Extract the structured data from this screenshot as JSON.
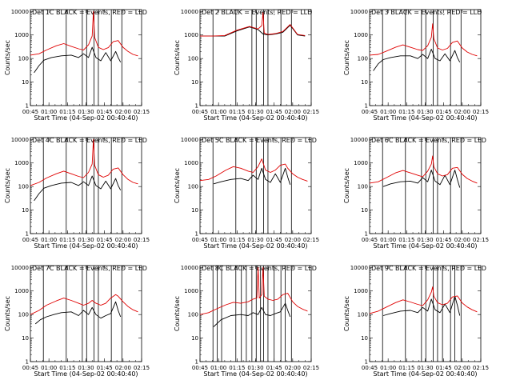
{
  "colors": {
    "events": "#000000",
    "lld": "#e00000",
    "background": "#ffffff",
    "axes": "#000000"
  },
  "axes_common": {
    "xlabel": "Start Time (04-Sep-02 00:40:40)",
    "ylabel": "Counts/sec",
    "xticks": [
      "00:45",
      "01:00",
      "01:15",
      "01:30",
      "01:45",
      "02:00",
      "02:15"
    ],
    "yticks": [
      "1",
      "10",
      "100",
      "1000",
      "10000"
    ],
    "xlim_minutes": [
      45,
      135
    ],
    "ylim": [
      1,
      12000
    ],
    "yscale": "log"
  },
  "chart_data": [
    {
      "type": "line",
      "title": "Det 1C BLACK = Events, RED = LLD",
      "x_unit": "minutes after 00:00",
      "x_range": [
        45,
        135
      ],
      "attenuator_lines_x": [
        55.5,
        74,
        87,
        90.5,
        96.5,
        100,
        110.5,
        119
      ],
      "series": [
        {
          "key": "events",
          "x": [
            48,
            52,
            56,
            62,
            70,
            78,
            84,
            88,
            92,
            95,
            98,
            102,
            106,
            110,
            114,
            116,
            118
          ],
          "y": [
            25,
            50,
            85,
            110,
            130,
            140,
            110,
            160,
            110,
            300,
            110,
            80,
            180,
            80,
            200,
            110,
            70
          ]
        },
        {
          "key": "lld",
          "x": [
            45,
            52,
            58,
            66,
            72,
            78,
            84,
            88,
            92,
            95,
            96,
            97,
            100,
            104,
            108,
            112,
            116,
            120,
            124,
            128,
            132
          ],
          "y": [
            140,
            160,
            230,
            350,
            430,
            330,
            260,
            230,
            380,
            900,
            10000,
            800,
            300,
            240,
            290,
            520,
            580,
            300,
            200,
            150,
            130
          ]
        }
      ]
    },
    {
      "type": "line",
      "title": "Det 2 BLACK = Events, RED = LLD",
      "x_unit": "minutes after 00:00",
      "x_range": [
        45,
        135
      ],
      "attenuator_lines_x": [
        55.5,
        74,
        87,
        90.5,
        96.5,
        100,
        110.5,
        119
      ],
      "series": [
        {
          "key": "events",
          "x": [
            45,
            55,
            65,
            75,
            85,
            92,
            96,
            100,
            106,
            112,
            118,
            124,
            130
          ],
          "y": [
            900,
            900,
            900,
            1500,
            2200,
            1700,
            1100,
            1000,
            1100,
            1300,
            2600,
            1000,
            900
          ]
        },
        {
          "key": "lld",
          "x": [
            45,
            55,
            65,
            75,
            85,
            92,
            95,
            96,
            97,
            100,
            106,
            112,
            118,
            124,
            130
          ],
          "y": [
            900,
            900,
            950,
            1600,
            2300,
            1800,
            2500,
            9000,
            1200,
            1050,
            1150,
            1400,
            2800,
            1050,
            950
          ]
        }
      ]
    },
    {
      "type": "line",
      "title": "Det 3 BLACK = Events, RED = LLD",
      "x_unit": "minutes after 00:00",
      "x_range": [
        45,
        135
      ],
      "attenuator_lines_x": [
        55.5,
        74,
        87,
        90.5,
        96.5,
        100,
        110.5,
        119
      ],
      "series": [
        {
          "key": "events",
          "x": [
            48,
            52,
            56,
            62,
            70,
            78,
            84,
            88,
            92,
            95,
            98,
            102,
            106,
            110,
            114,
            116,
            118
          ],
          "y": [
            30,
            60,
            90,
            110,
            130,
            130,
            100,
            150,
            100,
            250,
            100,
            80,
            160,
            80,
            220,
            110,
            70
          ]
        },
        {
          "key": "lld",
          "x": [
            45,
            52,
            58,
            66,
            72,
            78,
            84,
            88,
            92,
            95,
            96,
            97,
            100,
            104,
            108,
            112,
            116,
            120,
            124,
            128,
            132
          ],
          "y": [
            140,
            150,
            200,
            300,
            380,
            300,
            240,
            220,
            350,
            800,
            3000,
            700,
            280,
            230,
            270,
            480,
            560,
            280,
            190,
            150,
            130
          ]
        }
      ]
    },
    {
      "type": "line",
      "title": "Det 4C BLACK = Events, RED = LLD",
      "x_unit": "minutes after 00:00",
      "x_range": [
        45,
        135
      ],
      "attenuator_lines_x": [
        55.5,
        74,
        87,
        90.5,
        96.5,
        100,
        110.5,
        119
      ],
      "series": [
        {
          "key": "events",
          "x": [
            48,
            52,
            56,
            62,
            70,
            78,
            84,
            88,
            92,
            95,
            98,
            102,
            106,
            110,
            114,
            116,
            118
          ],
          "y": [
            25,
            50,
            85,
            110,
            140,
            150,
            110,
            160,
            110,
            280,
            110,
            80,
            170,
            80,
            220,
            110,
            70
          ]
        },
        {
          "key": "lld",
          "x": [
            45,
            52,
            58,
            66,
            72,
            78,
            84,
            88,
            92,
            95,
            96,
            97,
            100,
            104,
            108,
            112,
            116,
            120,
            124,
            128,
            132
          ],
          "y": [
            110,
            150,
            230,
            350,
            450,
            350,
            270,
            240,
            400,
            900,
            10000,
            800,
            320,
            250,
            300,
            550,
            620,
            320,
            200,
            150,
            130
          ]
        }
      ]
    },
    {
      "type": "line",
      "title": "Det 5C BLACK = Events, RED = LLD",
      "x_unit": "minutes after 00:00",
      "x_range": [
        45,
        135
      ],
      "attenuator_lines_x": [
        55.5,
        74,
        87,
        90.5,
        96.5,
        100,
        110.5,
        119
      ],
      "series": [
        {
          "key": "events",
          "x": [
            56,
            62,
            70,
            78,
            84,
            88,
            92,
            95,
            98,
            102,
            106,
            110,
            114,
            116,
            118
          ],
          "y": [
            130,
            160,
            200,
            220,
            180,
            300,
            200,
            600,
            200,
            150,
            350,
            150,
            600,
            250,
            120
          ]
        },
        {
          "key": "lld",
          "x": [
            45,
            52,
            58,
            66,
            72,
            78,
            84,
            88,
            92,
            95,
            98,
            102,
            106,
            110,
            114,
            116,
            120,
            124,
            128,
            132
          ],
          "y": [
            180,
            200,
            280,
            500,
            700,
            600,
            450,
            400,
            700,
            1500,
            500,
            400,
            500,
            800,
            900,
            600,
            350,
            250,
            200,
            170
          ]
        }
      ]
    },
    {
      "type": "line",
      "title": "Det 6C BLACK = Events, RED = LLD",
      "x_unit": "minutes after 00:00",
      "x_range": [
        45,
        135
      ],
      "attenuator_lines_x": [
        55.5,
        74,
        87,
        90.5,
        96.5,
        100,
        110.5,
        119
      ],
      "series": [
        {
          "key": "events",
          "x": [
            56,
            62,
            70,
            78,
            84,
            88,
            92,
            95,
            98,
            102,
            106,
            110,
            114,
            116,
            118
          ],
          "y": [
            100,
            130,
            160,
            170,
            140,
            240,
            160,
            500,
            170,
            120,
            300,
            120,
            500,
            200,
            90
          ]
        },
        {
          "key": "lld",
          "x": [
            45,
            52,
            58,
            66,
            72,
            78,
            84,
            88,
            92,
            95,
            96,
            97,
            100,
            104,
            108,
            112,
            116,
            120,
            124,
            128,
            132
          ],
          "y": [
            140,
            160,
            230,
            380,
            480,
            380,
            300,
            260,
            450,
            900,
            2000,
            700,
            350,
            280,
            320,
            600,
            650,
            330,
            220,
            170,
            140
          ]
        }
      ]
    },
    {
      "type": "line",
      "title": "Det 7C BLACK = Events, RED = LLD",
      "x_unit": "minutes after 00:00",
      "x_range": [
        45,
        135
      ],
      "attenuator_lines_x": [
        55.5,
        74,
        87,
        90.5,
        96.5,
        100,
        110.5,
        119
      ],
      "series": [
        {
          "key": "events",
          "x": [
            49,
            53,
            58,
            64,
            70,
            78,
            84,
            88,
            92,
            95,
            98,
            102,
            106,
            110,
            114,
            116,
            118
          ],
          "y": [
            40,
            60,
            80,
            100,
            120,
            130,
            90,
            150,
            100,
            200,
            100,
            70,
            90,
            110,
            350,
            150,
            80
          ]
        },
        {
          "key": "lld",
          "x": [
            45,
            52,
            58,
            66,
            72,
            78,
            84,
            88,
            92,
            95,
            98,
            102,
            106,
            110,
            114,
            116,
            120,
            124,
            128,
            132
          ],
          "y": [
            100,
            150,
            250,
            380,
            500,
            400,
            300,
            250,
            300,
            400,
            300,
            250,
            300,
            500,
            700,
            600,
            350,
            220,
            160,
            130
          ]
        }
      ]
    },
    {
      "type": "line",
      "title": "Det 8C BLACK = Events, RED = LLD",
      "x_unit": "minutes after 00:00",
      "x_range": [
        45,
        135
      ],
      "attenuator_lines_x": [
        55.5,
        59,
        62.5,
        74,
        78.5,
        82.5,
        87,
        90.5,
        94,
        96.5,
        100,
        105,
        110.5,
        114,
        119
      ],
      "series": [
        {
          "key": "events",
          "x": [
            56,
            62,
            70,
            78,
            84,
            88,
            92,
            95,
            98,
            102,
            106,
            110,
            114,
            116,
            118
          ],
          "y": [
            30,
            60,
            90,
            100,
            90,
            120,
            100,
            200,
            100,
            90,
            110,
            130,
            300,
            150,
            80
          ]
        },
        {
          "key": "lld",
          "x": [
            45,
            52,
            58,
            66,
            72,
            78,
            84,
            88,
            91,
            92,
            93,
            95,
            96,
            97,
            100,
            104,
            108,
            112,
            116,
            120,
            124,
            128,
            132
          ],
          "y": [
            100,
            120,
            170,
            260,
            330,
            300,
            350,
            450,
            500,
            10000,
            500,
            700,
            10000,
            600,
            450,
            400,
            450,
            700,
            800,
            350,
            220,
            170,
            140
          ]
        }
      ]
    },
    {
      "type": "line",
      "title": "Det 9C BLACK = Events, RED = LLD",
      "x_unit": "minutes after 00:00",
      "x_range": [
        45,
        135
      ],
      "attenuator_lines_x": [
        55.5,
        74,
        87,
        90.5,
        96.5,
        100,
        104,
        110.5,
        114,
        119
      ],
      "series": [
        {
          "key": "events",
          "x": [
            56,
            62,
            70,
            78,
            84,
            88,
            92,
            95,
            98,
            102,
            106,
            110,
            114,
            116,
            118
          ],
          "y": [
            90,
            110,
            140,
            150,
            120,
            200,
            140,
            450,
            160,
            120,
            280,
            120,
            600,
            250,
            90
          ]
        },
        {
          "key": "lld",
          "x": [
            45,
            52,
            58,
            66,
            72,
            78,
            84,
            88,
            92,
            95,
            96,
            97,
            100,
            104,
            108,
            112,
            116,
            120,
            124,
            128,
            132
          ],
          "y": [
            110,
            140,
            200,
            320,
            420,
            340,
            270,
            240,
            420,
            900,
            1500,
            600,
            320,
            260,
            300,
            560,
            620,
            310,
            210,
            160,
            130
          ]
        }
      ]
    }
  ]
}
